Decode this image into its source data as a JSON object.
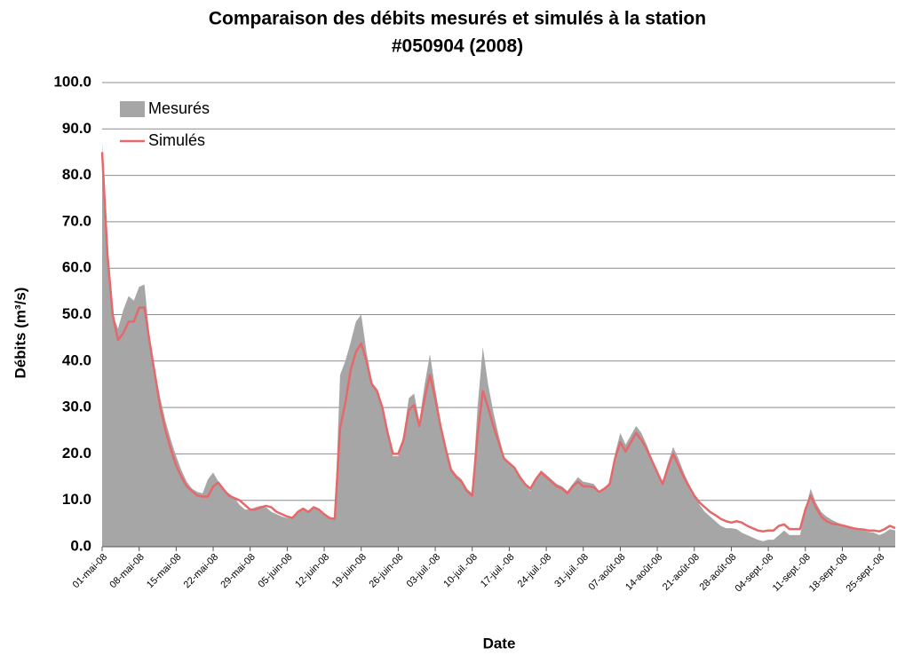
{
  "chart_data": {
    "type": "area-line",
    "title": [
      "Comparaison des débits mesurés et simulés à la station",
      "#050904 (2008)"
    ],
    "y_label": "Débits (m³/s)",
    "x_label": "Date",
    "categories": [
      "01-mai-08",
      null,
      null,
      null,
      null,
      null,
      null,
      "08-mai-08",
      null,
      null,
      null,
      null,
      null,
      null,
      "15-mai-08",
      null,
      null,
      null,
      null,
      null,
      null,
      "22-mai-08",
      null,
      null,
      null,
      null,
      null,
      null,
      "29-mai-08",
      null,
      null,
      null,
      null,
      null,
      null,
      "05-juin-08",
      null,
      null,
      null,
      null,
      null,
      null,
      "12-juin-08",
      null,
      null,
      null,
      null,
      null,
      null,
      "19-juin-08",
      null,
      null,
      null,
      null,
      null,
      null,
      "26-juin-08",
      null,
      null,
      null,
      null,
      null,
      null,
      "03-juil.-08",
      null,
      null,
      null,
      null,
      null,
      null,
      "10-juil.-08",
      null,
      null,
      null,
      null,
      null,
      null,
      "17-juil.-08",
      null,
      null,
      null,
      null,
      null,
      null,
      "24-juil.-08",
      null,
      null,
      null,
      null,
      null,
      null,
      "31-juil.-08",
      null,
      null,
      null,
      null,
      null,
      null,
      "07-août-08",
      null,
      null,
      null,
      null,
      null,
      null,
      "14-août-08",
      null,
      null,
      null,
      null,
      null,
      null,
      "21-août-08",
      null,
      null,
      null,
      null,
      null,
      null,
      "28-août-08",
      null,
      null,
      null,
      null,
      null,
      null,
      "04-sept.-08",
      null,
      null,
      null,
      null,
      null,
      null,
      "11-sept.-08",
      null,
      null,
      null,
      null,
      null,
      null,
      "18-sept.-08",
      null,
      null,
      null,
      null,
      null,
      null,
      "25-sept.-08",
      null,
      null,
      null
    ],
    "series": [
      {
        "name": "Mesurés",
        "color": "#a6a6a6",
        "kind": "area",
        "values": [
          87,
          65,
          50,
          47,
          51,
          54,
          53,
          56,
          56.5,
          45,
          38,
          32,
          27,
          23,
          19.5,
          16.5,
          14,
          12.5,
          11.8,
          11.5,
          14.5,
          16,
          14,
          12,
          11.5,
          10.5,
          9,
          8,
          8,
          8.5,
          8.8,
          8.5,
          7.5,
          7,
          6.5,
          6.2,
          6,
          7.5,
          8.2,
          7.5,
          8.2,
          8,
          7,
          6.2,
          6,
          37,
          40,
          44,
          48.5,
          50,
          42,
          35.5,
          34,
          30,
          24,
          19.5,
          19.5,
          24,
          32,
          33,
          27,
          35,
          41.5,
          34,
          27,
          21,
          17,
          15.5,
          14.5,
          12.5,
          11.5,
          30,
          43,
          35,
          29,
          24,
          19.5,
          18,
          17,
          15,
          13.5,
          12,
          14.5,
          16.5,
          15.5,
          14.5,
          13.5,
          13,
          12,
          13.5,
          15,
          14,
          13.8,
          13.5,
          12,
          12.5,
          14,
          20,
          24.5,
          22,
          24,
          26,
          24.5,
          22,
          19,
          16,
          14,
          18,
          21.5,
          19,
          16,
          13.5,
          11,
          9,
          7.5,
          6.5,
          5.5,
          4.5,
          4,
          4,
          3.8,
          3,
          2.5,
          2,
          1.5,
          1.2,
          1.5,
          1.5,
          2.5,
          3.5,
          2.5,
          2.5,
          2.5,
          8,
          12.5,
          9.5,
          7.5,
          6.5,
          5.8,
          5.2,
          4.8,
          4.3,
          4,
          3.8,
          3.5,
          3.2,
          3,
          2.5,
          3,
          3.8,
          3.5
        ]
      },
      {
        "name": "Simulés",
        "color": "#e5686b",
        "kind": "line",
        "values": [
          85,
          63,
          50,
          44.5,
          46,
          48.5,
          48.5,
          51.5,
          51.5,
          44,
          37,
          30,
          25,
          21,
          17.5,
          15,
          13,
          12,
          11,
          10.8,
          10.8,
          13,
          13.8,
          12.3,
          11,
          10.5,
          10,
          9,
          8,
          8,
          8.5,
          8.8,
          8.5,
          7.5,
          7,
          6.5,
          6.2,
          7.5,
          8.2,
          7.5,
          8.5,
          8,
          7,
          6.2,
          6,
          25.5,
          31,
          38,
          42,
          43.8,
          40,
          35,
          33.5,
          30,
          24.5,
          20,
          20,
          23,
          29.5,
          30.5,
          26,
          32,
          37,
          32,
          26,
          21,
          16.5,
          15,
          14,
          12,
          11,
          24,
          33.5,
          30,
          26,
          22.5,
          19,
          18,
          17,
          15,
          13.5,
          12.5,
          14.5,
          16,
          15,
          14,
          13,
          12.5,
          11.5,
          13,
          14,
          13,
          13,
          12.8,
          11.8,
          12.5,
          13.5,
          19,
          22.5,
          20.5,
          22.5,
          24.5,
          23,
          21,
          18.5,
          16,
          13.5,
          17,
          20,
          17.5,
          15,
          13,
          11,
          9.5,
          8.5,
          7.5,
          6.8,
          6,
          5.5,
          5.2,
          5.5,
          5.2,
          4.5,
          4,
          3.5,
          3.3,
          3.5,
          3.5,
          4.5,
          4.8,
          3.8,
          3.8,
          3.8,
          8,
          11,
          8.5,
          6.5,
          5.5,
          5,
          4.8,
          4.6,
          4.3,
          4,
          3.8,
          3.7,
          3.5,
          3.5,
          3.3,
          3.8,
          4.5,
          4
        ]
      }
    ],
    "ylim": [
      0,
      100
    ],
    "yticks": [
      {
        "value": 0,
        "label": "0.0"
      },
      {
        "value": 10,
        "label": "10.0"
      },
      {
        "value": 20,
        "label": "20.0"
      },
      {
        "value": 30,
        "label": "30.0"
      },
      {
        "value": 40,
        "label": "40.0"
      },
      {
        "value": 50,
        "label": "50.0"
      },
      {
        "value": 60,
        "label": "60.0"
      },
      {
        "value": 70,
        "label": "70.0"
      },
      {
        "value": 80,
        "label": "80.0"
      },
      {
        "value": 90,
        "label": "90.0"
      },
      {
        "value": 100,
        "label": "100.0"
      }
    ],
    "grid": true,
    "legend": "top-left"
  }
}
